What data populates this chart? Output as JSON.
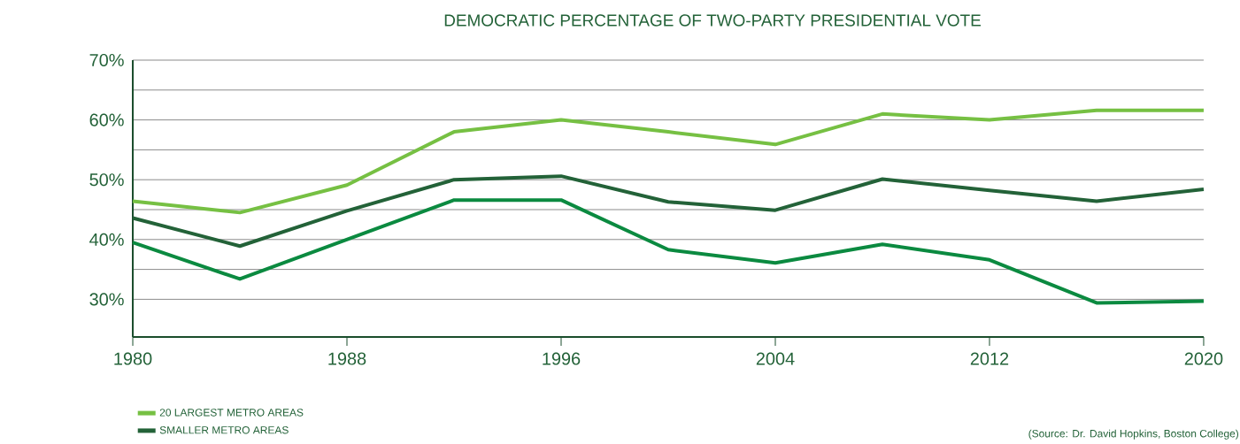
{
  "chart_data": {
    "type": "line",
    "title": "DEMOCRATIC PERCENTAGE OF TWO-PARTY PRESIDENTIAL VOTE",
    "x": [
      1980,
      1984,
      1988,
      1992,
      1996,
      2000,
      2004,
      2008,
      2012,
      2016,
      2020
    ],
    "series": [
      {
        "name": "20 LARGEST METRO AREAS",
        "color": "#76c043",
        "values": [
          46.4,
          44.5,
          49.1,
          58.0,
          60.0,
          58.0,
          55.9,
          61.0,
          60.0,
          61.6,
          61.6
        ]
      },
      {
        "name": "SMALLER METRO AREAS",
        "color": "#236238",
        "values": [
          43.6,
          38.9,
          44.8,
          50.0,
          50.6,
          46.3,
          44.9,
          50.1,
          48.2,
          46.4,
          48.4
        ]
      },
      {
        "color": "#0b8a40",
        "values": [
          39.5,
          33.4,
          40.0,
          46.6,
          46.6,
          38.3,
          36.1,
          39.2,
          36.6,
          29.4,
          29.7
        ]
      }
    ],
    "xlim": [
      1980,
      2020
    ],
    "ylim": [
      23.7,
      70
    ],
    "xticks": [
      1980,
      1988,
      1996,
      2004,
      2012,
      2020
    ],
    "yticks": [
      {
        "value": 30,
        "label": "30%"
      },
      {
        "value": 35,
        "label": null
      },
      {
        "value": 40,
        "label": "40%"
      },
      {
        "value": 45,
        "label": null
      },
      {
        "value": 50,
        "label": "50%"
      },
      {
        "value": 55,
        "label": null
      },
      {
        "value": 60,
        "label": "60%"
      },
      {
        "value": 65,
        "label": null
      },
      {
        "value": 70,
        "label": "70%"
      }
    ],
    "grid": "y",
    "legend": "bottom left",
    "line_style": "solid",
    "marker": "none",
    "annotations": [
      "(Source: Dr. David Hopkins, Boston College)"
    ]
  }
}
